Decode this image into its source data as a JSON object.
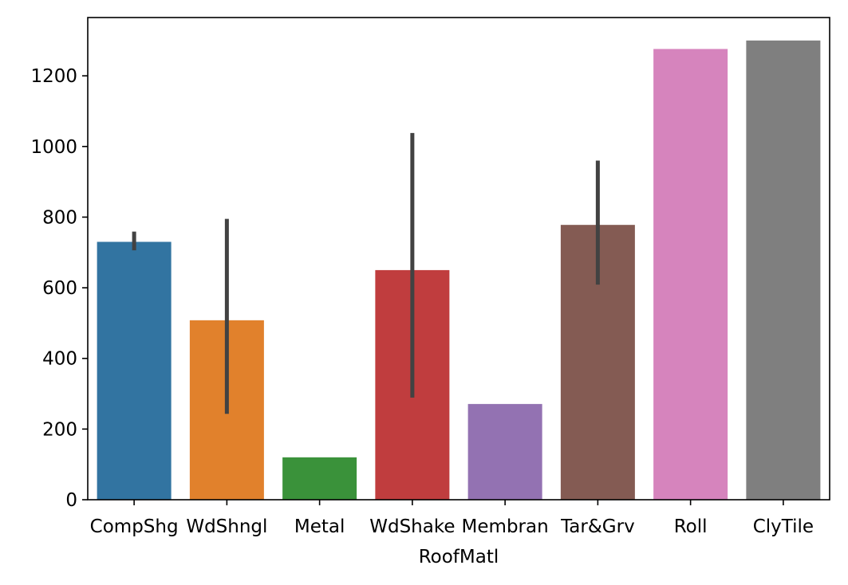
{
  "chart_data": {
    "type": "bar",
    "title": "",
    "xlabel": "RoofMatl",
    "ylabel": "",
    "categories": [
      "CompShg",
      "WdShngl",
      "Metal",
      "WdShake",
      "Membran",
      "Tar&Grv",
      "Roll",
      "ClyTile"
    ],
    "values": [
      730,
      508,
      120,
      650,
      271,
      778,
      1276,
      1300
    ],
    "error_low": [
      706,
      243,
      null,
      289,
      null,
      609,
      null,
      null
    ],
    "error_high": [
      759,
      795,
      null,
      1038,
      null,
      960,
      null,
      null
    ],
    "colors": [
      "#3274a1",
      "#e1812c",
      "#3a923a",
      "#c03d3e",
      "#9372b2",
      "#845b53",
      "#d684bd",
      "#7f7f7f"
    ],
    "error_bar_color": "#424242",
    "ylim": [
      0,
      1365
    ],
    "yticks": [
      "0",
      "200",
      "400",
      "600",
      "800",
      "1000",
      "1200"
    ],
    "grid": false,
    "legend": "none"
  }
}
